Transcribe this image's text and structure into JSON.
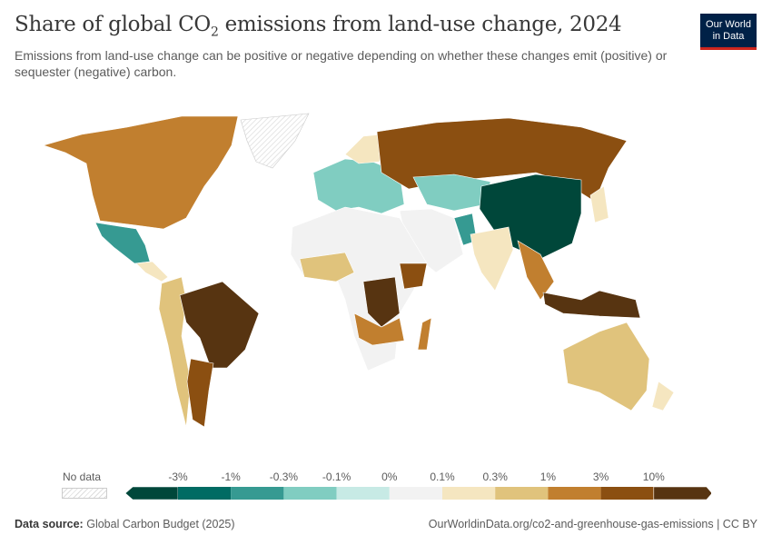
{
  "header": {
    "title_prefix": "Share of global CO",
    "title_sub": "2",
    "title_suffix": " emissions from land-use change, 2024",
    "subtitle": "Emissions from land-use change can be positive or negative depending on whether these changes emit (positive) or sequester (negative) carbon.",
    "logo_line1": "Our World",
    "logo_line2": "in Data"
  },
  "legend": {
    "no_data_label": "No data",
    "ticks": [
      "-3%",
      "-1%",
      "-0.3%",
      "-0.1%",
      "0%",
      "0.1%",
      "0.3%",
      "1%",
      "3%",
      "10%"
    ],
    "bin_colors": [
      "#00473a",
      "#006b63",
      "#369a92",
      "#80cdc1",
      "#c7eae5",
      "#f2f2f2",
      "#f5e6c0",
      "#e0c37c",
      "#c17f2f",
      "#8b4f11",
      "#573411"
    ],
    "no_data_color": "#e6e6e6"
  },
  "footer": {
    "source_label": "Data source:",
    "source": "Global Carbon Budget (2025)",
    "url": "OurWorldinData.org/co2-and-greenhouse-gas-emissions | CC BY"
  }
}
